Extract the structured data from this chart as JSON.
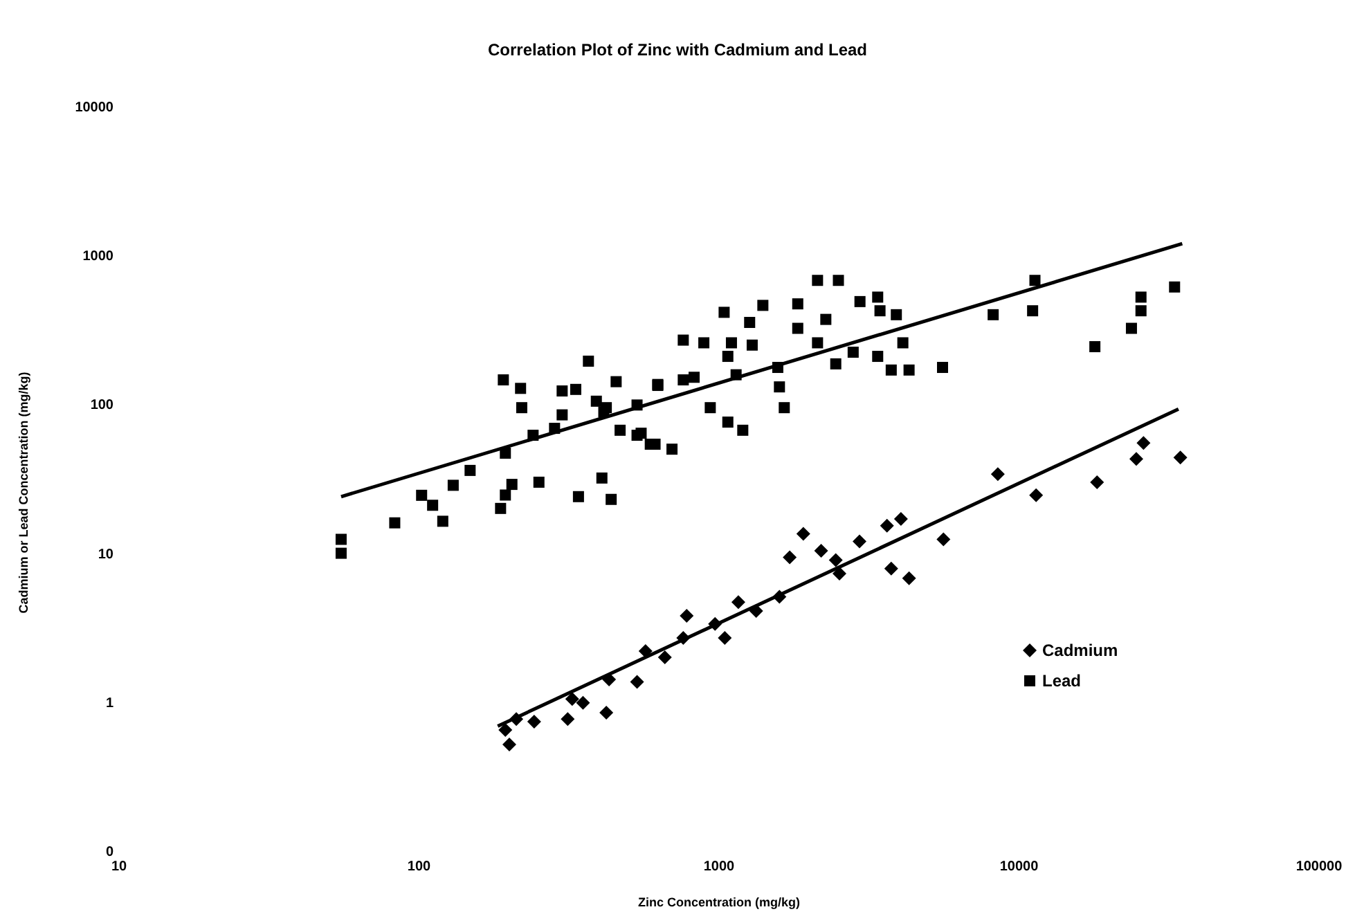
{
  "chart_data": {
    "type": "scatter",
    "title": "Correlation Plot of Zinc with Cadmium and Lead",
    "xlabel": "Zinc Concentration (mg/kg)",
    "ylabel": "Cadmium or Lead Concentration (mg/kg)",
    "log": "xy",
    "grid": false,
    "legend": "right",
    "xlim": [
      10,
      100000
    ],
    "ylim": [
      0.1,
      10000
    ],
    "xticks": [
      10,
      100,
      1000,
      10000,
      100000
    ],
    "yticks": [
      {
        "value": 0.1,
        "label": "0"
      },
      1,
      10,
      100,
      1000,
      10000
    ],
    "series": [
      {
        "name": "Cadmium",
        "color": "#000000",
        "marker": "diamond",
        "x": [
          200,
          194,
          211,
          242,
          313,
          352,
          421,
          324,
          430,
          533,
          569,
          660,
          780,
          760,
          1045,
          970,
          1160,
          1330,
          1590,
          1720,
          1910,
          2190,
          2450,
          2520,
          2940,
          3630,
          4040,
          3750,
          4300,
          5600,
          8500,
          11400,
          18200,
          24600,
          34500,
          26000
        ],
        "values": [
          0.52,
          0.65,
          0.77,
          0.74,
          0.77,
          0.99,
          0.85,
          1.05,
          1.42,
          1.37,
          2.2,
          2.0,
          3.8,
          2.7,
          2.7,
          3.35,
          4.7,
          4.1,
          5.1,
          9.4,
          13.5,
          10.4,
          9,
          7.3,
          12,
          15.3,
          17,
          7.9,
          6.8,
          12.4,
          34,
          24.5,
          30,
          43,
          44,
          55
        ]
      },
      {
        "name": "Lead",
        "color": "#000000",
        "marker": "square",
        "x": [
          55,
          55,
          83,
          102,
          111,
          120,
          130,
          148,
          191,
          218,
          220,
          187,
          194,
          204,
          194,
          240,
          251,
          283,
          300,
          333,
          300,
          367,
          340,
          407,
          437,
          390,
          421,
          454,
          468,
          533,
          625,
          590,
          413,
          533,
          550,
          612,
          697,
          625,
          760,
          826,
          760,
          890,
          1040,
          1070,
          1100,
          1140,
          935,
          1070,
          1200,
          1265,
          1290,
          1400,
          1570,
          1590,
          1650,
          1830,
          1830,
          2130,
          2500,
          2270,
          2130,
          2450,
          2800,
          2950,
          3380,
          3440,
          3900,
          3380,
          4100,
          3750,
          4300,
          5560,
          8200,
          11100,
          11300,
          17900,
          23700,
          25500,
          25500,
          33000
        ],
        "values": [
          12.4,
          10,
          16,
          24.5,
          21,
          16.4,
          28.6,
          36,
          146,
          128,
          95,
          20,
          24.6,
          29,
          47,
          62,
          30,
          69,
          123,
          126,
          85,
          195,
          24,
          32,
          23,
          105,
          95,
          142,
          67,
          62,
          134,
          54,
          89,
          99,
          64,
          54,
          50,
          136,
          146,
          152,
          270,
          259,
          415,
          210,
          259,
          158,
          95,
          76,
          67,
          355,
          250,
          462,
          177,
          131,
          95,
          473,
          324,
          680,
          680,
          372,
          259,
          187,
          224,
          490,
          525,
          425,
          400,
          210,
          259,
          170,
          170,
          177,
          400,
          425,
          680,
          244,
          324,
          525,
          425,
          614
        ]
      },
      {
        "type": "line",
        "color": "#000000",
        "marker": "none",
        "x": [
          183,
          34000
        ],
        "values": [
          0.69,
          93
        ]
      },
      {
        "type": "line",
        "color": "#000000",
        "marker": "none",
        "x": [
          55,
          35000
        ],
        "values": [
          24,
          1200
        ]
      }
    ]
  }
}
